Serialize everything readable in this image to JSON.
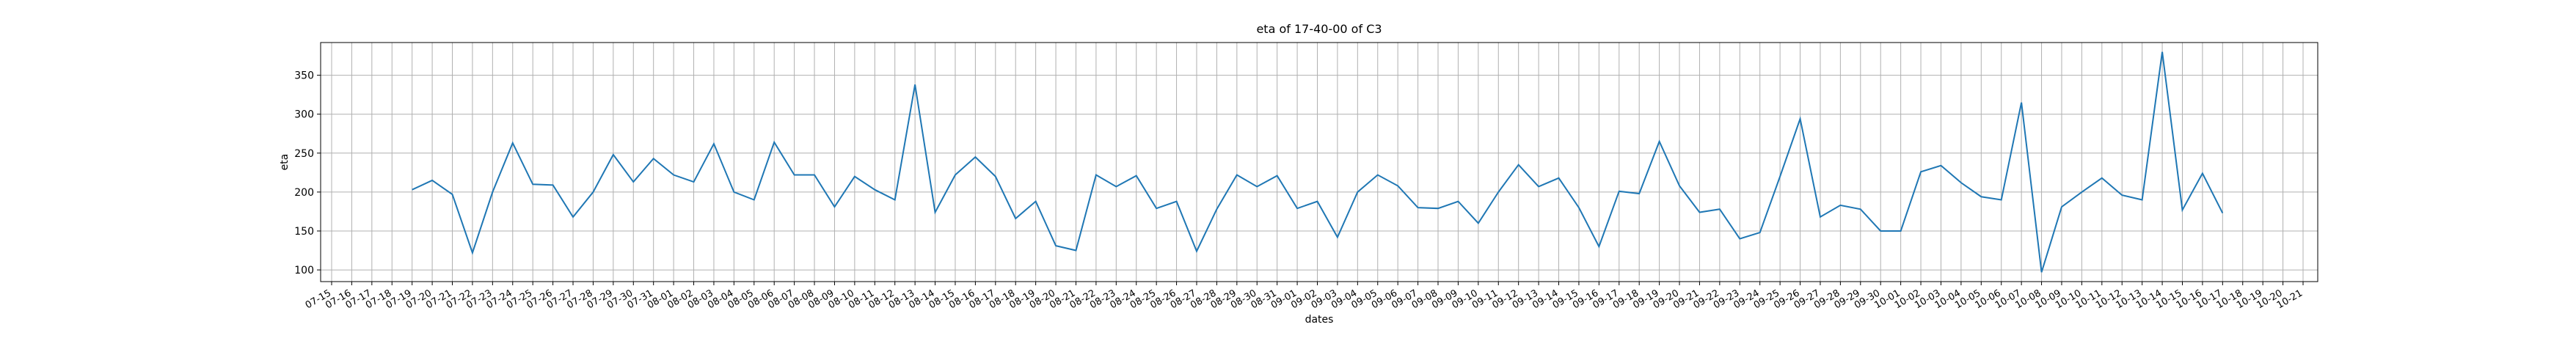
{
  "chart_data": {
    "type": "line",
    "title": "eta of 17-40-00 of C3",
    "xlabel": "dates",
    "ylabel": "eta",
    "categories": [
      "07-15",
      "07-16",
      "07-17",
      "07-18",
      "07-19",
      "07-20",
      "07-21",
      "07-22",
      "07-23",
      "07-24",
      "07-25",
      "07-26",
      "07-27",
      "07-28",
      "07-29",
      "07-30",
      "07-31",
      "08-01",
      "08-02",
      "08-03",
      "08-04",
      "08-05",
      "08-06",
      "08-07",
      "08-08",
      "08-09",
      "08-10",
      "08-11",
      "08-12",
      "08-13",
      "08-14",
      "08-15",
      "08-16",
      "08-17",
      "08-18",
      "08-19",
      "08-20",
      "08-21",
      "08-22",
      "08-23",
      "08-24",
      "08-25",
      "08-26",
      "08-27",
      "08-28",
      "08-29",
      "08-30",
      "08-31",
      "09-01",
      "09-02",
      "09-03",
      "09-04",
      "09-05",
      "09-06",
      "09-07",
      "09-08",
      "09-09",
      "09-10",
      "09-11",
      "09-12",
      "09-13",
      "09-14",
      "09-15",
      "09-16",
      "09-17",
      "09-18",
      "09-19",
      "09-20",
      "09-21",
      "09-22",
      "09-23",
      "09-24",
      "09-25",
      "09-26",
      "09-27",
      "09-28",
      "09-29",
      "09-30",
      "10-01",
      "10-02",
      "10-03",
      "10-04",
      "10-05",
      "10-06",
      "10-07",
      "10-08",
      "10-09",
      "10-10",
      "10-11",
      "10-12",
      "10-13",
      "10-14",
      "10-15",
      "10-16",
      "10-17",
      "10-18",
      "10-19",
      "10-20",
      "10-21"
    ],
    "series": [
      {
        "name": "eta",
        "color": "#1f77b4",
        "values": [
          null,
          null,
          null,
          null,
          203,
          215,
          197,
          122,
          200,
          263,
          210,
          209,
          168,
          200,
          248,
          213,
          243,
          222,
          213,
          262,
          200,
          190,
          264,
          222,
          222,
          181,
          220,
          203,
          190,
          338,
          174,
          222,
          245,
          220,
          166,
          188,
          131,
          125,
          222,
          207,
          221,
          179,
          188,
          124,
          178,
          222,
          207,
          221,
          179,
          188,
          142,
          200,
          222,
          208,
          180,
          179,
          188,
          160,
          200,
          235,
          207,
          218,
          180,
          130,
          201,
          198,
          265,
          208,
          174,
          178,
          140,
          148,
          220,
          294,
          168,
          183,
          178,
          150,
          150,
          226,
          234,
          212,
          194,
          190,
          315,
          97,
          181,
          200,
          218,
          196,
          190,
          380,
          177,
          224,
          173,
          null,
          null,
          null,
          null
        ]
      }
    ],
    "ylim": [
      85,
      392
    ],
    "yticks": [
      100,
      150,
      200,
      250,
      300,
      350
    ],
    "grid": true
  }
}
